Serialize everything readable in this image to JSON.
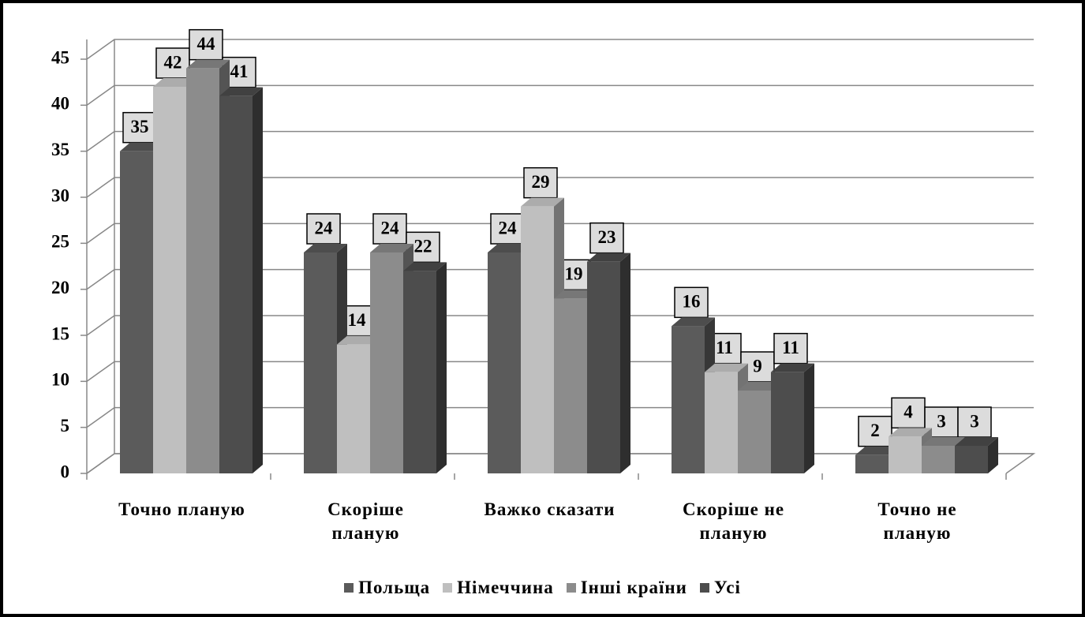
{
  "chart_data": {
    "type": "bar3d",
    "categories": [
      "Точно планую",
      "Скоріше планую",
      "Важко сказати",
      "Скоріше не планую",
      "Точно не планую"
    ],
    "series": [
      {
        "name": "Польща",
        "color": "#5b5b5b",
        "values": [
          35,
          24,
          24,
          16,
          2
        ]
      },
      {
        "name": "Німеччина",
        "color": "#bfbfbf",
        "values": [
          42,
          14,
          29,
          11,
          4
        ]
      },
      {
        "name": "Інші країни",
        "color": "#8c8c8c",
        "values": [
          44,
          24,
          19,
          9,
          3
        ]
      },
      {
        "name": "Усі",
        "color": "#4d4d4d",
        "values": [
          41,
          22,
          23,
          11,
          3
        ]
      }
    ],
    "ylim": [
      0,
      45
    ],
    "yticks": [
      0,
      5,
      10,
      15,
      20,
      25,
      30,
      35,
      40,
      45
    ],
    "grid": true,
    "legend": "bottom"
  }
}
